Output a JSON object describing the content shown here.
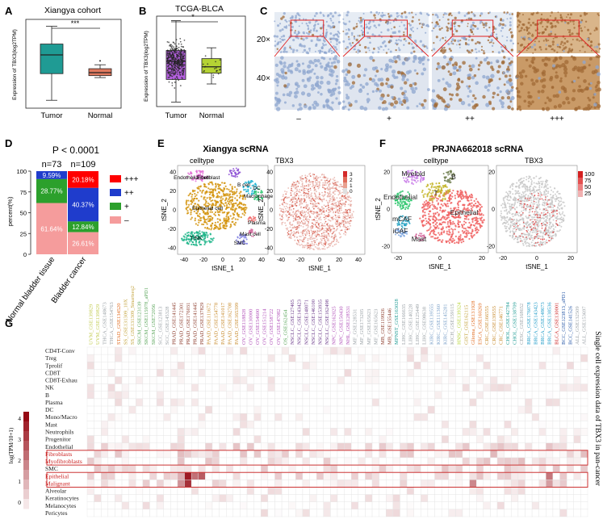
{
  "panels": {
    "A": {
      "letter": "A",
      "title": "Xiangya cohort",
      "ylabel": "Expression of TBX3(log2TPM)",
      "groups": [
        "Tumor",
        "Normal"
      ],
      "significance": "***",
      "box_stats": [
        {
          "min": 0.8,
          "q1": 3.5,
          "median": 5.4,
          "q3": 6.5,
          "max": 8.3,
          "color": "#1f9b94"
        },
        {
          "min": 3.1,
          "q1": 3.3,
          "median": 3.6,
          "q3": 4.0,
          "max": 4.4,
          "color": "#e07a5f",
          "outliers": [
            4.8
          ]
        }
      ],
      "ylim": [
        0,
        9
      ]
    },
    "B": {
      "letter": "B",
      "title": "TCGA-BLCA",
      "ylabel": "Expression of TBX3(log2TPM)",
      "groups": [
        "Tumor",
        "Normal"
      ],
      "significance": "*",
      "box_stats": [
        {
          "min": 0.5,
          "q1": 3.0,
          "median": 5.0,
          "q3": 6.2,
          "max": 9.5,
          "color": "#b560e0"
        },
        {
          "min": 2.5,
          "q1": 3.7,
          "median": 4.4,
          "q3": 5.3,
          "max": 6.5,
          "color": "#b5d334"
        }
      ],
      "ylim": [
        0,
        10
      ]
    },
    "C": {
      "letter": "C",
      "rows": [
        "20×",
        "40×"
      ],
      "columns": [
        "–",
        "+",
        "++",
        "+++"
      ],
      "stain_intensity": [
        0.05,
        0.25,
        0.55,
        0.9
      ],
      "colors": {
        "hematoxylin": "#8ea6cf",
        "dab": "#a06a35"
      }
    },
    "D": {
      "letter": "D",
      "pvalue": "P < 0.0001",
      "ylabel": "percent(%)",
      "yticks": [
        "0",
        "25",
        "50",
        "75",
        "100"
      ],
      "legend": [
        "+++",
        "++",
        "+",
        "–"
      ],
      "colors": [
        "#ff0000",
        "#1f3ccc",
        "#2ca02c",
        "#f59c9c"
      ]
    },
    "E": {
      "letter": "E",
      "title": "Xiangya scRNA",
      "left_title": "celltype",
      "right_title": "TBX3",
      "xlabel": "tSNE_1",
      "ylabel": "tSNE_2",
      "xticks": [
        "-40",
        "-20",
        "0",
        "20",
        "40"
      ],
      "yticks_left": [
        "40",
        "20",
        "0",
        "-20",
        "-40"
      ],
      "yticks_right": [
        "40",
        "20",
        "0",
        "-20",
        "-40"
      ],
      "labels": [
        "Fibroblast",
        "Endothelial cell",
        "B cell",
        "DC",
        "Macrophage",
        "Epithelial cell",
        "Plasma",
        "Mast cell",
        "T/NK",
        "SMC"
      ],
      "colorbar": [
        "3",
        "2",
        "1",
        "0"
      ]
    },
    "F": {
      "letter": "F",
      "title": "PRJNA662018 scRNA",
      "left_title": "celltype",
      "right_title": "TBX3",
      "xlabel": "tSNE_1",
      "ylabel": "tSNE_2",
      "xticks_left": [
        "-20",
        "0",
        "20"
      ],
      "xticks_right": [
        "-20",
        "0",
        "20"
      ],
      "yticks": [
        "20",
        "0",
        "-20"
      ],
      "labels": [
        "Myeloid",
        "B",
        "T",
        "Endothelial",
        "mCAF",
        "Epithelial",
        "iCAF",
        "Mast"
      ],
      "colorbar": [
        "100",
        "75",
        "50",
        "25"
      ]
    },
    "G": {
      "letter": "G",
      "scale_label": "log(TPM/10+1)",
      "scale_ticks": [
        "4",
        "3",
        "2",
        "1",
        "0"
      ],
      "side_title": "Single cell expression data of TBX3 in pan-cancer",
      "rows": [
        "CD4T-Conv",
        "Treg",
        "Tprolif",
        "CD8T",
        "CD8T-Exhau",
        "NK",
        "B",
        "Plasma",
        "DC",
        "Mono/Macro",
        "Mast",
        "Neutrophils",
        "Progenitor",
        "Endothelial",
        "Fibroblasts",
        "Myofibroblasts",
        "SMC",
        "Epithelial",
        "Malignant",
        "Alveolar",
        "Keratinocytes",
        "Melanocytes",
        "Pericytes"
      ],
      "highlight_rows": [
        "Fibroblasts",
        "Myofibroblasts",
        "Epithelial",
        "Malignant"
      ],
      "columns": [
        {
          "label": "UVM_GSE139829",
          "color": "#c2cc52"
        },
        {
          "label": "UVM_GSE139829",
          "color": "#c2cc52"
        },
        {
          "label": "THCA_GSE148673",
          "color": "#9aa1a6"
        },
        {
          "label": "THCA_GSE154763",
          "color": "#9aa1a6"
        },
        {
          "label": "STAD_GSE134520",
          "color": "#e06c20"
        },
        {
          "label": "SS_GSE131309_10X",
          "color": "#c4a43f"
        },
        {
          "label": "SS_GSE131309_Smartseq2",
          "color": "#c4a43f"
        },
        {
          "label": "SKCM_GSE123139",
          "color": "#5aa55a"
        },
        {
          "label": "SKCM_GSE115978_aPD1",
          "color": "#5aa55a"
        },
        {
          "label": "SKCM_GSE72056",
          "color": "#5aa55a"
        },
        {
          "label": "SCC_GSE123813",
          "color": "#9aa1a6"
        },
        {
          "label": "SCC_GSE145328",
          "color": "#9aa1a6"
        },
        {
          "label": "PRAD_GSE141445",
          "color": "#8b3a2a"
        },
        {
          "label": "PRAD_GSE172301",
          "color": "#8b3a2a"
        },
        {
          "label": "PRAD_GSE176031",
          "color": "#8b3a2a"
        },
        {
          "label": "PRAD_GSE141445",
          "color": "#8b3a2a"
        },
        {
          "label": "PRAD_GSE137829",
          "color": "#8b3a2a"
        },
        {
          "label": "PAAD_GSE111672",
          "color": "#c78a2b"
        },
        {
          "label": "PAAD_GSE154778",
          "color": "#c78a2b"
        },
        {
          "label": "PAAD_GSE141017",
          "color": "#c78a2b"
        },
        {
          "label": "PAAD_GSE162708",
          "color": "#c78a2b"
        },
        {
          "label": "PAAD_GSE165399",
          "color": "#c78a2b"
        },
        {
          "label": "OV_GSE118828",
          "color": "#b04fb8"
        },
        {
          "label": "OV_GSE130000",
          "color": "#b04fb8"
        },
        {
          "label": "OV_GSE154600",
          "color": "#b04fb8"
        },
        {
          "label": "OV_GSE151214",
          "color": "#b04fb8"
        },
        {
          "label": "OV_GSE158722",
          "color": "#b04fb8"
        },
        {
          "label": "OV_GSE147082",
          "color": "#b04fb8"
        },
        {
          "label": "OS_GSE162454",
          "color": "#5aa55a"
        },
        {
          "label": "NSCLC_GSE127465",
          "color": "#6b3a8a"
        },
        {
          "label": "NSCLC_GSE143423",
          "color": "#6b3a8a"
        },
        {
          "label": "NSCLC_GSE148071",
          "color": "#6b3a8a"
        },
        {
          "label": "NSCLC_GSE146100",
          "color": "#6b3a8a"
        },
        {
          "label": "NSCLC_GSE153935",
          "color": "#6b3a8a"
        },
        {
          "label": "NSCLC_GSE162498",
          "color": "#6b3a8a"
        },
        {
          "label": "NPC_GSE162025",
          "color": "#b04fb8"
        },
        {
          "label": "NPC_GSE150430",
          "color": "#b04fb8"
        },
        {
          "label": "NHL_GSE128531",
          "color": "#b04fb8"
        },
        {
          "label": "MF_GSE128531",
          "color": "#9aa1a6"
        },
        {
          "label": "MF_GSE173205",
          "color": "#9aa1a6"
        },
        {
          "label": "MF_GSE165623",
          "color": "#9aa1a6"
        },
        {
          "label": "MF_GSE165623",
          "color": "#9aa1a6"
        },
        {
          "label": "MB_GSE119926",
          "color": "#8b3a2a"
        },
        {
          "label": "MB_GSE155446",
          "color": "#8b3a2a"
        },
        {
          "label": "MPNST_GSE163028",
          "color": "#1f9b94"
        },
        {
          "label": "LIHC_GSE166635",
          "color": "#9aa1a6"
        },
        {
          "label": "LIHC_GSE140228",
          "color": "#9aa1a6"
        },
        {
          "label": "LIHC_GSE125449",
          "color": "#9aa1a6"
        },
        {
          "label": "LIHC_GSE98638",
          "color": "#9aa1a6"
        },
        {
          "label": "KIRC_GSE139555",
          "color": "#7ba0c8"
        },
        {
          "label": "KIRC_GSE111360",
          "color": "#7ba0c8"
        },
        {
          "label": "KIRC_GSE145281",
          "color": "#7ba0c8"
        },
        {
          "label": "KICH_GSE159115",
          "color": "#9aa1a6"
        },
        {
          "label": "HNSC_GSE139324",
          "color": "#b5d334"
        },
        {
          "label": "GIST_GSE162115",
          "color": "#c4a43f"
        },
        {
          "label": "Glioma_GSE131928",
          "color": "#e06c20"
        },
        {
          "label": "ESCA_GSE160269",
          "color": "#e06c20"
        },
        {
          "label": "CRC_GSE166555",
          "color": "#c78a2b"
        },
        {
          "label": "CRC_GSE139555",
          "color": "#c78a2b"
        },
        {
          "label": "CRC_GSE146771",
          "color": "#c78a2b"
        },
        {
          "label": "CHOL_GSE142784",
          "color": "#1f9b94"
        },
        {
          "label": "CHOL_GSE138709",
          "color": "#1f9b94"
        },
        {
          "label": "CESC_GSE168652",
          "color": "#9aa1a6"
        },
        {
          "label": "BRCA_GSE176078",
          "color": "#1f9bc8"
        },
        {
          "label": "BRCA_GSE143423",
          "color": "#1f9bc8"
        },
        {
          "label": "BRCA_GSE148673",
          "color": "#1f9bc8"
        },
        {
          "label": "BRCA_GSE138536",
          "color": "#1f9bc8"
        },
        {
          "label": "BLCA_GSE130001",
          "color": "#cc2222"
        },
        {
          "label": "BCC_GSE123813_aPD1",
          "color": "#2a5aa8"
        },
        {
          "label": "BCC_GSE141526",
          "color": "#2a5aa8"
        },
        {
          "label": "ALL_GSE132509",
          "color": "#9aa1a6"
        },
        {
          "label": "ALL_GSE153697",
          "color": "#9aa1a6"
        }
      ],
      "heat_ranges": [
        0,
        4.5
      ]
    },
    "D_bars": [
      {
        "label": "Normal bladder tissue",
        "n": "n=73",
        "values": [
          0,
          9.59,
          28.77,
          61.64
        ],
        "labels": [
          "",
          "9.59%",
          "28.77%",
          "61.64%"
        ]
      },
      {
        "label": "Bladder cancer",
        "n": "n=109",
        "values": [
          20.18,
          40.37,
          12.84,
          26.61
        ],
        "labels": [
          "20.18%",
          "40.37%",
          "12.84%",
          "26.61%"
        ]
      }
    ]
  }
}
